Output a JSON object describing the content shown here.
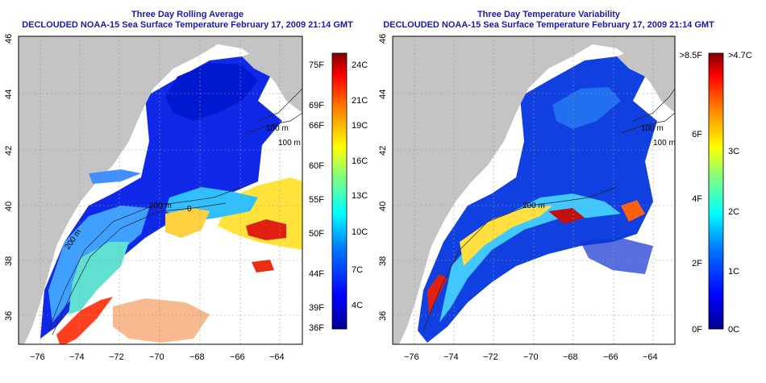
{
  "panels": [
    {
      "title_line1": "Three Day Rolling Average",
      "title_line2": "DECLOUDED NOAA-15 Sea Surface Temperature February 17, 2009 21:14 GMT",
      "x_ticks": [
        "−76",
        "−74",
        "−72",
        "−70",
        "−68",
        "−66",
        "−64"
      ],
      "y_ticks": [
        "36",
        "38",
        "40",
        "42",
        "44",
        "46"
      ],
      "depth_labels": [
        "200 m",
        "200 m",
        "100 m",
        "100 m",
        "0"
      ],
      "colorbar_left": [
        "75F",
        "69F",
        "66F",
        "60F",
        "55F",
        "50F",
        "44F",
        "39F",
        "36F"
      ],
      "colorbar_right": [
        "24C",
        "21C",
        "19C",
        "16C",
        "13C",
        "10C",
        "7C",
        "4C"
      ]
    },
    {
      "title_line1": "Three Day Temperature Variability",
      "title_line2": "DECLOUDED NOAA-15 Sea Surface Temperature February 17, 2009 21:14 GMT",
      "x_ticks": [
        "−76",
        "−74",
        "−72",
        "−70",
        "−68",
        "−66",
        "−64"
      ],
      "y_ticks": [
        "36",
        "38",
        "40",
        "42",
        "44",
        "46"
      ],
      "depth_labels": [
        "200 m",
        "100 m",
        "100 m"
      ],
      "colorbar_left": [
        ">8.5F",
        "6F",
        "4F",
        "2F",
        "0F"
      ],
      "colorbar_right": [
        ">4.7C",
        "3C",
        "2C",
        "1C",
        "0C"
      ]
    }
  ],
  "colors": {
    "land": "#c4c4c4",
    "water_no_data": "#ffffff",
    "title": "#1a1aa8",
    "colorscale": [
      "#00008f",
      "#0000ff",
      "#0080ff",
      "#00ffff",
      "#80ff80",
      "#ffff00",
      "#ff8000",
      "#ff0000",
      "#800000"
    ]
  }
}
